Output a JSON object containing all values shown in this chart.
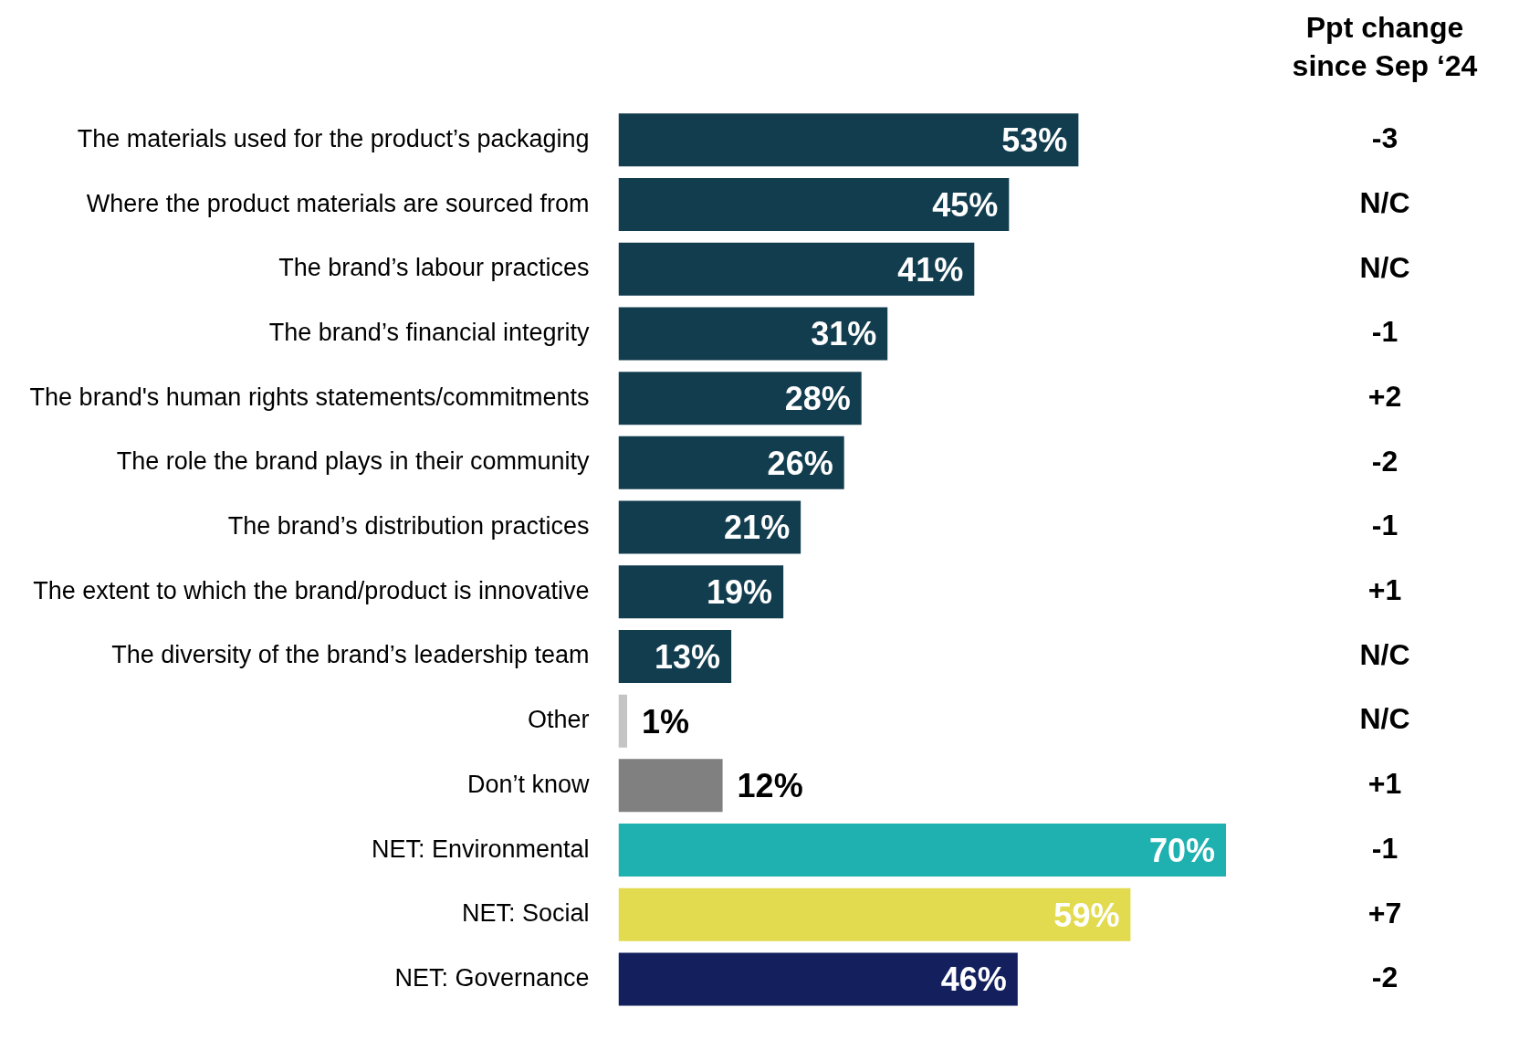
{
  "chart_data": {
    "type": "bar",
    "orientation": "horizontal",
    "legend": false,
    "categories": [
      "The materials used for the product’s packaging",
      "Where the product materials are sourced from",
      "The brand’s labour practices",
      "The brand’s financial integrity",
      "The brand's human rights statements/commitments",
      "The role the brand plays in their community",
      "The brand’s distribution practices",
      "The extent to which the brand/product is innovative",
      "The diversity of the brand’s leadership team",
      "Other",
      "Don’t know",
      "NET: Environmental",
      "NET: Social",
      "NET: Governance"
    ],
    "values": [
      53,
      45,
      41,
      31,
      28,
      26,
      21,
      19,
      13,
      1,
      12,
      70,
      59,
      46
    ],
    "value_labels": [
      "53%",
      "45%",
      "41%",
      "31%",
      "28%",
      "26%",
      "21%",
      "19%",
      "13%",
      "1%",
      "12%",
      "70%",
      "59%",
      "46%"
    ],
    "colors": [
      "#123d4f",
      "#123d4f",
      "#123d4f",
      "#123d4f",
      "#123d4f",
      "#123d4f",
      "#123d4f",
      "#123d4f",
      "#123d4f",
      "#c4c4c4",
      "#808080",
      "#1fb0b0",
      "#e2db50",
      "#14205e"
    ],
    "annotations": [
      "Ppt change since Sep ‘24",
      "-3",
      "N/C",
      "N/C",
      "-1",
      "+2",
      "-2",
      "-1",
      "+1",
      "N/C",
      "N/C",
      "+1",
      "-1",
      "+7",
      "-2"
    ]
  }
}
